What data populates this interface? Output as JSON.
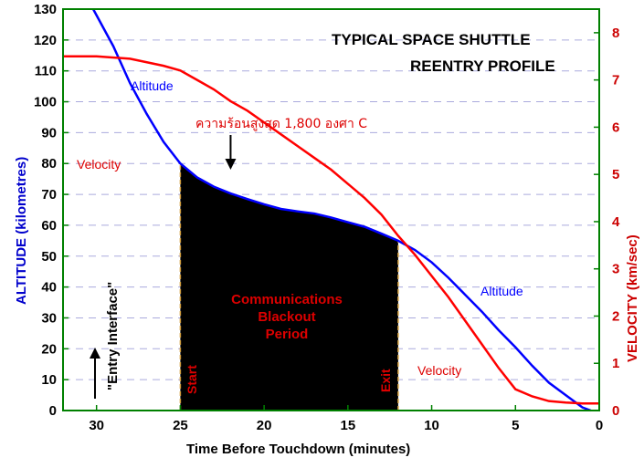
{
  "chart_data": {
    "type": "line",
    "title": "TYPICAL SPACE SHUTTLE",
    "subtitle": "REENTRY PROFILE",
    "xlabel": "Time Before Touchdown (minutes)",
    "ylabel_left": "ALTITUDE (kilometres)",
    "ylabel_right": "VELOCITY  (km/sec)",
    "xlim": [
      32,
      0
    ],
    "ylim_left": [
      0,
      130
    ],
    "ylim_right": [
      0,
      8.5
    ],
    "x_ticks": [
      "30",
      "25",
      "20",
      "15",
      "10",
      "5",
      "0"
    ],
    "x_tick_values": [
      30,
      25,
      20,
      15,
      10,
      5,
      0
    ],
    "y_left_ticks": [
      "0",
      "10",
      "20",
      "30",
      "40",
      "50",
      "60",
      "70",
      "80",
      "90",
      "100",
      "110",
      "120",
      "130"
    ],
    "y_left_tick_values": [
      0,
      10,
      20,
      30,
      40,
      50,
      60,
      70,
      80,
      90,
      100,
      110,
      120,
      130
    ],
    "y_right_ticks": [
      "0",
      "1",
      "2",
      "3",
      "4",
      "5",
      "6",
      "7",
      "8"
    ],
    "y_right_tick_values": [
      0,
      1,
      2,
      3,
      4,
      5,
      6,
      7,
      8
    ],
    "grid": "horizontal dashed",
    "series": [
      {
        "name": "Altitude",
        "axis": "left",
        "color": "#0000ff",
        "x": [
          30.2,
          29,
          28,
          27,
          26,
          25,
          24,
          23,
          22,
          21,
          20,
          19,
          18,
          17,
          16,
          15,
          14,
          13,
          12,
          11,
          10,
          9,
          8,
          7,
          6,
          5,
          4,
          3,
          2,
          1,
          0.5
        ],
        "y": [
          130,
          118,
          106,
          96,
          87,
          80,
          75.5,
          72.5,
          70.3,
          68.5,
          66.8,
          65.3,
          64.5,
          63.8,
          62.5,
          61,
          59.5,
          57.3,
          55,
          52,
          48,
          43,
          37.5,
          32,
          26,
          20.5,
          14.5,
          9,
          5,
          1,
          0
        ]
      },
      {
        "name": "Velocity",
        "axis": "right",
        "color": "#ff0000",
        "x": [
          32,
          30,
          28,
          26,
          25,
          24,
          23,
          22,
          21,
          20,
          19,
          18,
          17,
          16,
          15,
          14,
          13,
          12,
          11,
          10,
          9,
          8,
          7,
          6,
          5,
          4,
          3,
          2,
          1,
          0
        ],
        "y": [
          7.5,
          7.5,
          7.45,
          7.3,
          7.2,
          7.0,
          6.8,
          6.55,
          6.35,
          6.1,
          5.85,
          5.6,
          5.35,
          5.1,
          4.8,
          4.5,
          4.15,
          3.7,
          3.3,
          2.85,
          2.4,
          1.9,
          1.4,
          0.9,
          0.45,
          0.3,
          0.2,
          0.17,
          0.15,
          0.15
        ]
      }
    ],
    "blackout": {
      "label_lines": [
        "Communications",
        "Blackout",
        "Period"
      ],
      "start_label": "Start",
      "exit_label": "Exit",
      "start_x": 25,
      "end_x": 12,
      "fill": "#000000"
    },
    "annotations": {
      "altitude_label_top": "Altitude",
      "altitude_label_bottom": "Altitude",
      "velocity_label_left": "Velocity",
      "velocity_label_right": "Velocity",
      "peak_heat": "ความร้อนสูงสุด 1,800 องศา C",
      "peak_heat_x": 22,
      "entry_interface": "\"Entry Interface\""
    },
    "colors": {
      "axis_frame": "#008000",
      "left_axis_label": "#0000cc",
      "right_axis_label": "#cc0000",
      "annotation_red": "#dd0000",
      "grid": "#aaaadd"
    }
  }
}
